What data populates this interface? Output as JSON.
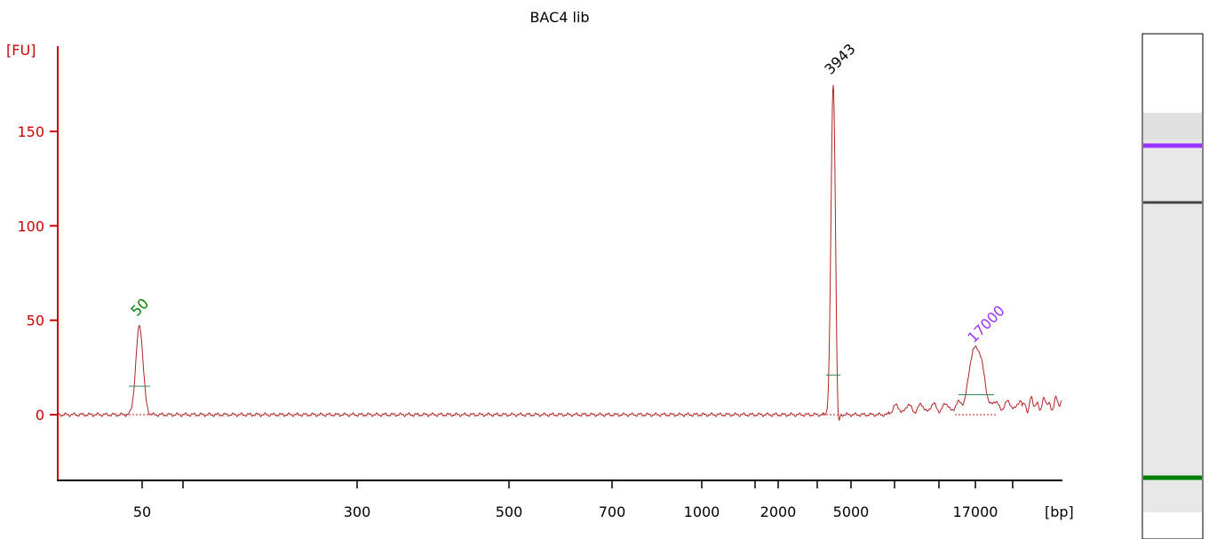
{
  "chart_data": {
    "type": "line",
    "title": "BAC4 lib",
    "ylabel": "[FU]",
    "xlabel": "[bp]",
    "ylim": [
      -35,
      195
    ],
    "y_ticks": [
      0,
      50,
      100,
      150
    ],
    "x_tick_labels": [
      "50",
      "300",
      "500",
      "700",
      "1000",
      "2000",
      "5000",
      "17000"
    ],
    "grid": false,
    "colors": {
      "axis": "#cc0000",
      "trace": "#b22222",
      "lower_marker": "#008000",
      "upper_marker": "#9933ff",
      "peak_label": "#000000"
    },
    "peaks": [
      {
        "label": "50",
        "height": 47,
        "color_key": "lower_marker"
      },
      {
        "label": "3943",
        "height": 175,
        "color_key": "peak_label"
      },
      {
        "label": "17000",
        "height": 33,
        "color_key": "upper_marker"
      }
    ]
  },
  "gel": {
    "bands": [
      {
        "name": "upper-marker-band",
        "color": "#9933ff"
      },
      {
        "name": "sample-band",
        "color": "#444444"
      },
      {
        "name": "lower-marker-band",
        "color": "#008000"
      }
    ]
  }
}
